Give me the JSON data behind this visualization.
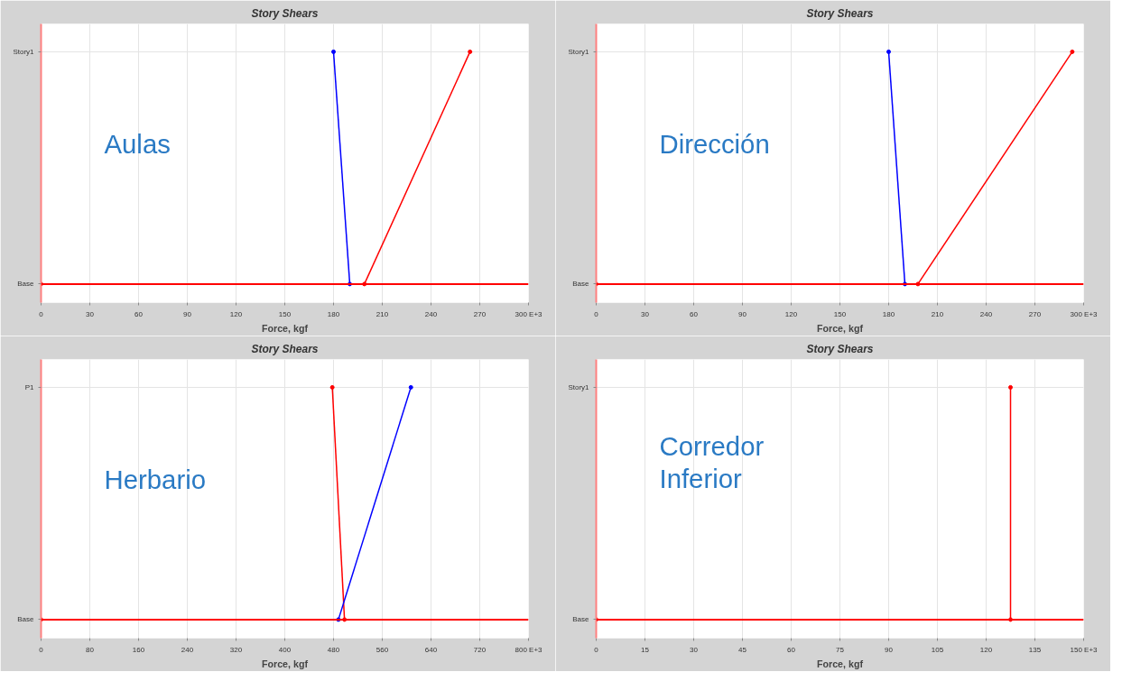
{
  "chart_data": [
    {
      "type": "line",
      "orientation": "horizontal",
      "title": "Story Shears",
      "xlabel": "Force, kgf",
      "annotations": [
        "Aulas"
      ],
      "categories": [
        "Story1",
        "Base"
      ],
      "xlim": [
        0,
        300
      ],
      "xticks": [
        0,
        30,
        60,
        90,
        120,
        150,
        180,
        210,
        240,
        270,
        {
          "value": 300,
          "label": "300 E+3"
        }
      ],
      "grid": true,
      "marker": "circle",
      "line_style": "solid",
      "ref_lines": [
        {
          "axis": "y",
          "value": "Base",
          "color": "#ff0000"
        }
      ],
      "series": [
        {
          "color": "#ff0000",
          "values": [
            264,
            199
          ]
        },
        {
          "color": "#ff0000",
          "values": [
            null,
            0
          ]
        },
        {
          "color": "#0000ff",
          "values": [
            180,
            190
          ]
        }
      ]
    },
    {
      "type": "line",
      "orientation": "horizontal",
      "title": "Story Shears",
      "xlabel": "Force, kgf",
      "annotations": [
        "Dirección"
      ],
      "categories": [
        "Story1",
        "Base"
      ],
      "xlim": [
        0,
        300
      ],
      "xticks": [
        0,
        30,
        60,
        90,
        120,
        150,
        180,
        210,
        240,
        270,
        {
          "value": 300,
          "label": "300 E+3"
        }
      ],
      "grid": true,
      "marker": "circle",
      "line_style": "solid",
      "ref_lines": [
        {
          "axis": "y",
          "value": "Base",
          "color": "#ff0000"
        }
      ],
      "series": [
        {
          "color": "#ff0000",
          "values": [
            293,
            198
          ]
        },
        {
          "color": "#ff0000",
          "values": [
            null,
            0
          ]
        },
        {
          "color": "#0000ff",
          "values": [
            180,
            190
          ]
        }
      ]
    },
    {
      "type": "line",
      "orientation": "horizontal",
      "title": "Story Shears",
      "xlabel": "Force, kgf",
      "annotations": [
        "Herbario"
      ],
      "categories": [
        "P1",
        "Base"
      ],
      "xlim": [
        0,
        800
      ],
      "xticks": [
        0,
        80,
        160,
        240,
        320,
        400,
        480,
        560,
        640,
        720,
        {
          "value": 800,
          "label": "800 E+3"
        }
      ],
      "grid": true,
      "marker": "circle",
      "line_style": "solid",
      "ref_lines": [
        {
          "axis": "y",
          "value": "Base",
          "color": "#ff0000"
        }
      ],
      "series": [
        {
          "color": "#ff0000",
          "values": [
            478,
            498
          ]
        },
        {
          "color": "#ff0000",
          "values": [
            null,
            0
          ]
        },
        {
          "color": "#0000ff",
          "values": [
            607,
            488
          ]
        }
      ]
    },
    {
      "type": "line",
      "orientation": "horizontal",
      "title": "Story Shears",
      "xlabel": "Force, kgf",
      "annotations": [
        "Corredor\nInferior"
      ],
      "categories": [
        "Story1",
        "Base"
      ],
      "xlim": [
        0,
        150
      ],
      "xticks": [
        0,
        15,
        30,
        45,
        60,
        75,
        90,
        105,
        120,
        135,
        {
          "value": 150,
          "label": "150 E+3"
        }
      ],
      "grid": true,
      "marker": "circle",
      "line_style": "solid",
      "ref_lines": [
        {
          "axis": "y",
          "value": "Base",
          "color": "#ff0000"
        }
      ],
      "series": [
        {
          "color": "#ff0000",
          "values": [
            127.5,
            127.5
          ]
        },
        {
          "color": "#ff0000",
          "values": [
            null,
            0
          ]
        }
      ]
    }
  ]
}
